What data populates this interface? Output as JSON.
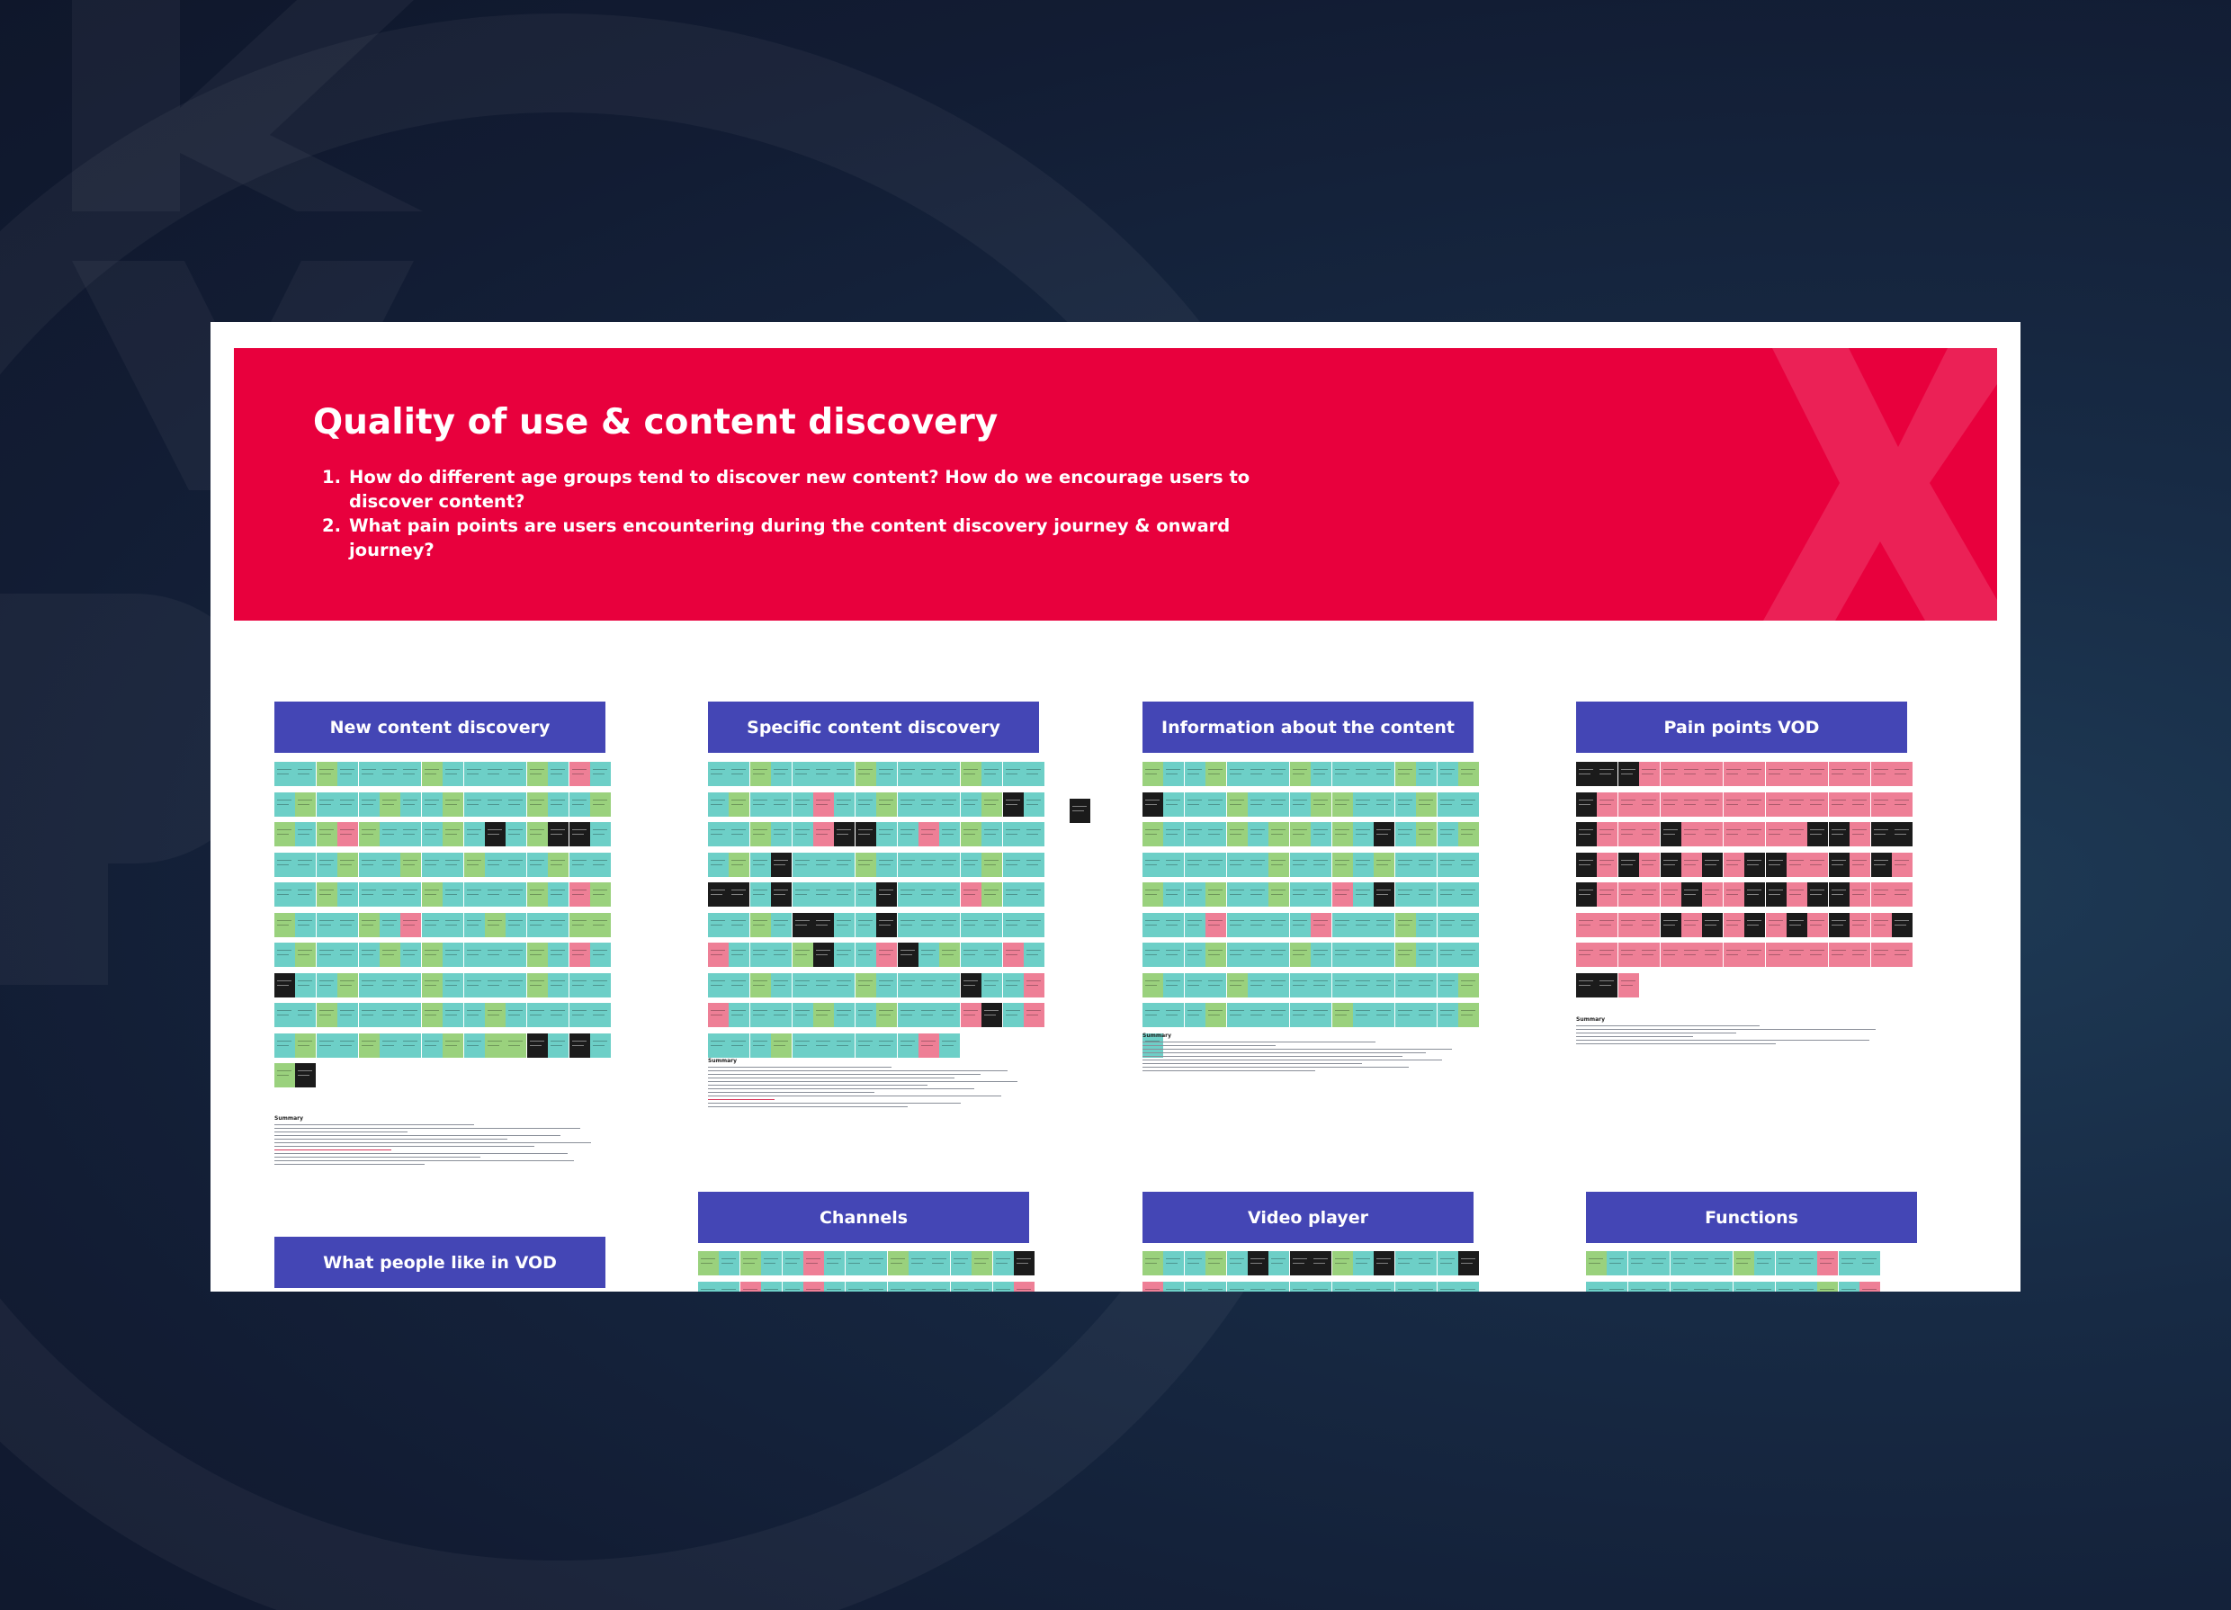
{
  "banner": {
    "title": "Quality of use & content discovery",
    "questions": [
      {
        "num": "1.",
        "text": "How do different age groups tend to discover new content? How do we encourage users to discover content?"
      },
      {
        "num": "2.",
        "text": "What pain points are users encountering during the content discovery journey & onward journey?"
      }
    ]
  },
  "sections": {
    "new_content": "New content discovery",
    "specific_content": "Specific content discovery",
    "info_content": "Information about the content",
    "pain_points": "Pain points VOD",
    "what_people_like": "What people like in VOD",
    "channels": "Channels",
    "video_player": "Video player",
    "functions": "Functions"
  },
  "summary_label": "Summary",
  "colors": {
    "background": "#121c33",
    "banner": "#e8003d",
    "section_header": "#4446b5",
    "note_teal": "#6dcfc7",
    "note_green": "#9ad17d",
    "note_pink": "#ee7f96",
    "note_black": "#1b1b1b"
  },
  "note_grids": {
    "new_content": [
      "TTGTTTTGTTTTGTPT",
      "TGTTTGTTGTTTGTTG",
      "GTGPGTTTGTBTGBBT",
      "TTTGTTGTTGTTTGTT",
      "TTGTTTTGTTTTGTPG",
      "GTTTGTPTTTGTTTGG",
      "TGTTTGTGTTTTGTPT",
      "BTTGTTTGTTTTGTTT",
      "TTGTTTTGTTGTTTTT",
      "TGTTGTTTGTGGBTBT",
      "GB"
    ],
    "specific_content": [
      "TTGTTTTGTTTTGTTT",
      "TGTTTPTTGTTTTGBT",
      "TTGTTPBBTTPTGTTT",
      "TGTBTTTGTTTTTGTT",
      "BBTBTTTTBTTTPGTT",
      "TTGTBBTTBTTTTTTT",
      "PTTTGBTTPBTGTTPT",
      "TTGTTTTGTTTTBTTP",
      "PTTTTGTTGTTTPBTP",
      "TTTGTTTTTTPT"
    ],
    "info_content": [
      "GTTGTTTGTTTTGTTG",
      "BTTTGTTTGGTTTGTT",
      "GTTTGTGGTGTBTGTG",
      "TTTTTTGTTGTGTTTT",
      "GTTGTTGTTPTBTTTT",
      "TTTPTTTTPTTTGTTT",
      "TTTGTTTGTTTTGTTT",
      "GTTTGTTTTTTTTTTG",
      "TTTGTTTTTGTTTTTG",
      "T"
    ],
    "pain_points": [
      "BBBPPPPPPPPPPPPP",
      "BPPPPPPPPPPPPPPP",
      "BPPPBPPPPPPBBPBB",
      "BPBPBPBPBBPPBPBP",
      "BPPPPBPPBBPBBPPP",
      "PPPPBPBPBPBPBPPB",
      "PPPPPPPPPPPPPPPP",
      "BBP"
    ],
    "channels": [
      "GTGTTPTTTGTTTGTB",
      "TTPTTPTTTTTTTTTP"
    ],
    "video_player": [
      "GTTGTBTBBGTBTTTB",
      "PTTTTTTTTTTTTTTT"
    ],
    "functions": [
      "GTTTTTTGTTTPTT",
      "TTTTTTTTTTTGTP"
    ]
  }
}
